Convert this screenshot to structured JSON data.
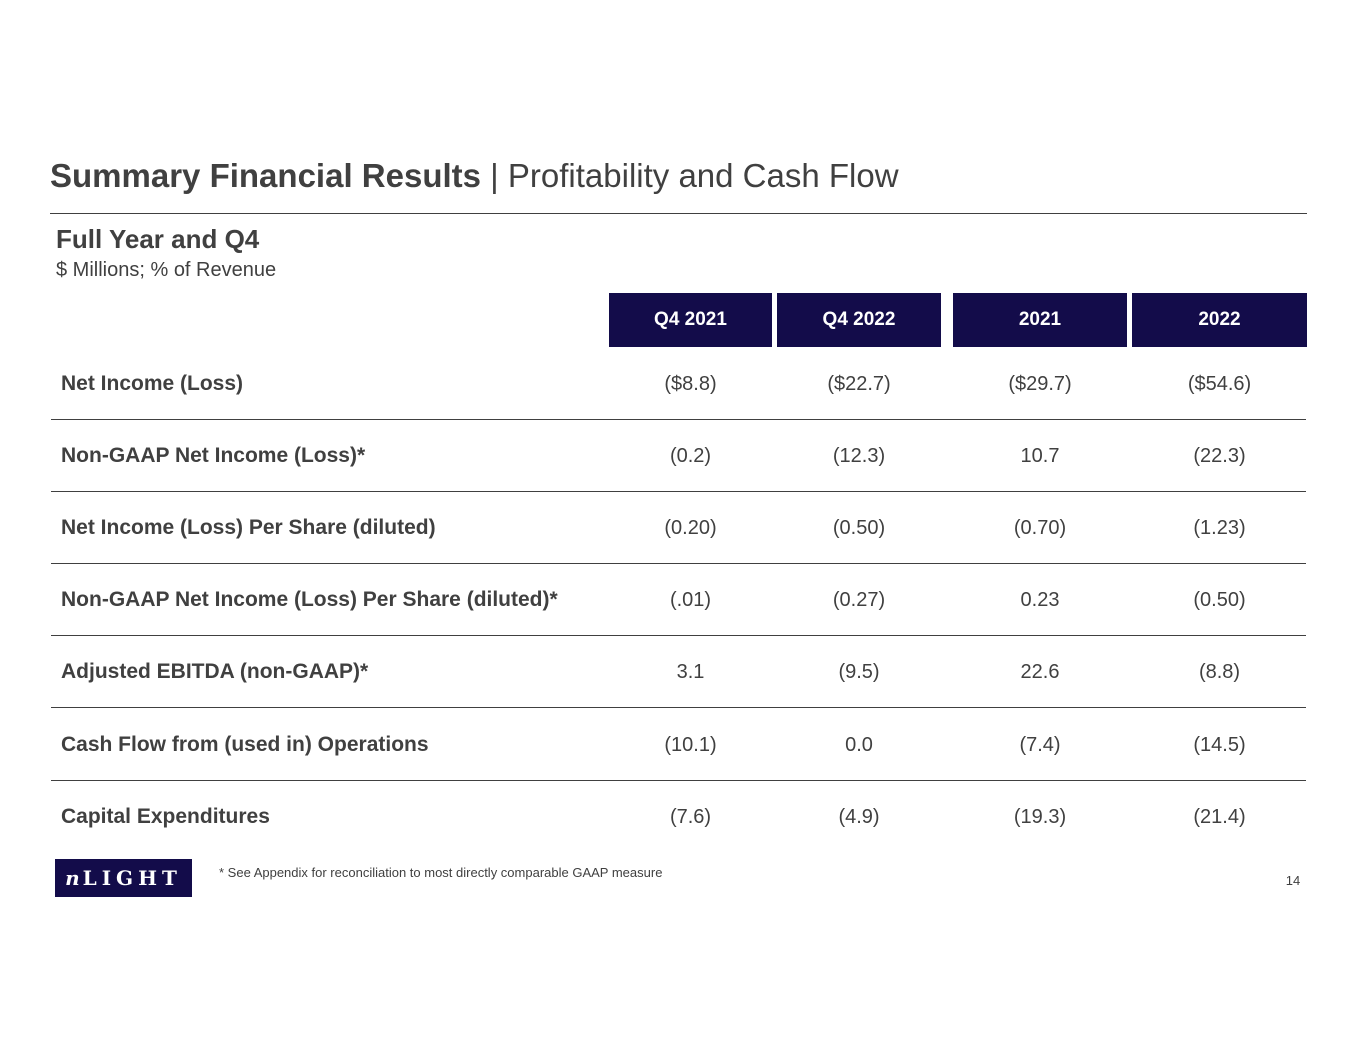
{
  "title": {
    "bold": "Summary Financial Results",
    "rest": " | Profitability and Cash Flow"
  },
  "subtitle": "Full Year and Q4",
  "unit_note": "$ Millions;  % of Revenue",
  "columns": [
    "Q4 2021",
    "Q4 2022",
    "2021",
    "2022"
  ],
  "rows": [
    {
      "label": "Net Income (Loss)",
      "values": [
        "($8.8)",
        "($22.7)",
        "($29.7)",
        "($54.6)"
      ]
    },
    {
      "label": "Non-GAAP  Net Income (Loss)*",
      "values": [
        "(0.2)",
        "(12.3)",
        "10.7",
        "(22.3)"
      ]
    },
    {
      "label": "Net Income (Loss) Per Share (diluted)",
      "values": [
        "(0.20)",
        "(0.50)",
        "(0.70)",
        "(1.23)"
      ]
    },
    {
      "label": "Non-GAAP  Net Income (Loss) Per Share (diluted)*",
      "values": [
        "(.01)",
        "(0.27)",
        "0.23",
        "(0.50)"
      ]
    },
    {
      "label": "Adjusted EBITDA (non-GAAP)*",
      "values": [
        "3.1",
        "(9.5)",
        "22.6",
        "(8.8)"
      ]
    },
    {
      "label": "Cash Flow from (used in) Operations",
      "values": [
        "(10.1)",
        "0.0",
        "(7.4)",
        "(14.5)"
      ]
    },
    {
      "label": "Capital Expenditures",
      "values": [
        "(7.6)",
        "(4.9)",
        "(19.3)",
        "(21.4)"
      ]
    }
  ],
  "logo": {
    "n": "n",
    "rest": "LIGHT"
  },
  "footnote": "* See Appendix  for  reconciliation  to most directly  comparable  GAAP  measure",
  "page_number": "14",
  "colors": {
    "header_bg": "#130c4a",
    "text": "#404040"
  }
}
